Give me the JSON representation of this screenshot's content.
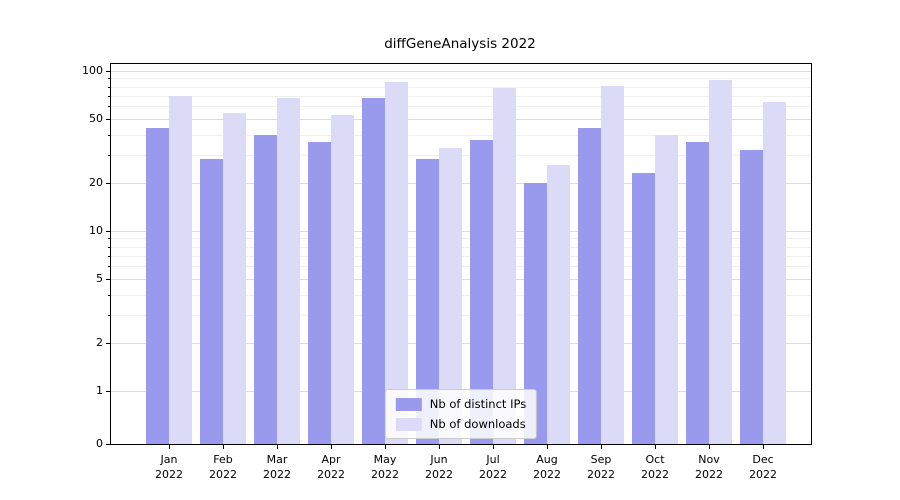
{
  "title": "diffGeneAnalysis 2022",
  "colors": {
    "distinct_ips_bar": "#9999ee",
    "downloads_bar": "#dbdbf8",
    "grid_major": "#dcdcdc",
    "grid_minor": "#efefef",
    "axis": "#000000",
    "legend_border": "#cccccc",
    "background": "#ffffff"
  },
  "chart_data": {
    "type": "bar",
    "title": "diffGeneAnalysis 2022",
    "categories": [
      "Jan 2022",
      "Feb 2022",
      "Mar 2022",
      "Apr 2022",
      "May 2022",
      "Jun 2022",
      "Jul 2022",
      "Aug 2022",
      "Sep 2022",
      "Oct 2022",
      "Nov 2022",
      "Dec 2022"
    ],
    "series": [
      {
        "name": "Nb of distinct IPs",
        "color": "#9999ee",
        "values": [
          44,
          28,
          40,
          36,
          68,
          28,
          37,
          20,
          44,
          23,
          36,
          32
        ]
      },
      {
        "name": "Nb of downloads",
        "color": "#dbdbf8",
        "values": [
          70,
          55,
          68,
          53,
          85,
          33,
          78,
          26,
          81,
          40,
          88,
          64
        ]
      }
    ],
    "yscale": "symlog",
    "ylim": [
      0,
      100
    ],
    "yticks_major": [
      0,
      1,
      2,
      5,
      10,
      20,
      50,
      100
    ],
    "yticks_minor": [
      3,
      4,
      6,
      7,
      8,
      9,
      30,
      40,
      60,
      70,
      80,
      90
    ],
    "xlabel": "",
    "ylabel": "",
    "grid": true,
    "legend_position": "lower center"
  },
  "legend": {
    "items": [
      "Nb of distinct IPs",
      "Nb of downloads"
    ]
  }
}
